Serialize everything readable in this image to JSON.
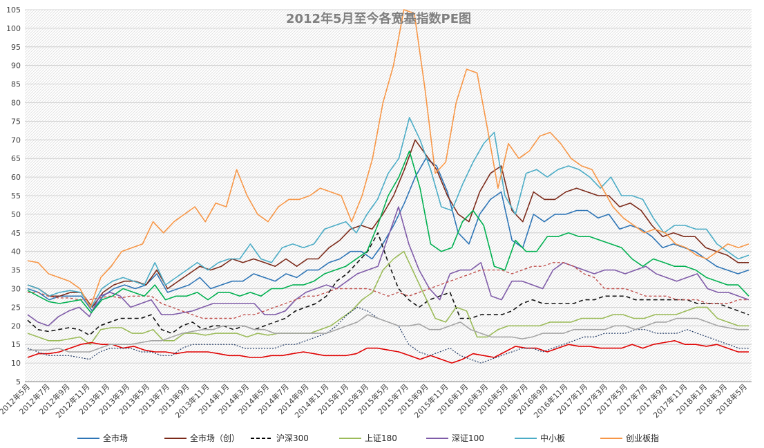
{
  "chart_data": {
    "type": "line",
    "title": "2012年5月至今各宽基指数PE图",
    "grid": true,
    "legend_position": "bottom",
    "ylim": [
      5,
      105
    ],
    "y_ticks": [
      5,
      10,
      15,
      20,
      25,
      30,
      35,
      40,
      45,
      50,
      55,
      60,
      65,
      70,
      75,
      80,
      85,
      90,
      95,
      100,
      105
    ],
    "x_labels": [
      "2012年5月",
      "2012年7月",
      "2012年9月",
      "2012年11月",
      "2013年1月",
      "2013年3月",
      "2013年5月",
      "2013年7月",
      "2013年9月",
      "2013年11月",
      "2014年1月",
      "2014年3月",
      "2014年5月",
      "2014年7月",
      "2014年9月",
      "2014年11月",
      "2015年1月",
      "2015年3月",
      "2015年5月",
      "2015年7月",
      "2015年9月",
      "2015年11月",
      "2016年1月",
      "2016年3月",
      "2016年5月",
      "2016年7月",
      "2016年9月",
      "2016年11月",
      "2017年1月",
      "2017年3月",
      "2017年5月",
      "2017年7月",
      "2017年9月",
      "2017年11月",
      "2018年1月",
      "2018年3月",
      "2018年5月"
    ],
    "legend": [
      {
        "name": "全市场",
        "color": "#2e75b6",
        "dash": "solid"
      },
      {
        "name": "全市场（创）",
        "color": "#7b2a1a",
        "dash": "solid"
      },
      {
        "name": "沪深300",
        "color": "#000000",
        "dash": "dashed"
      },
      {
        "name": "上证180",
        "color": "#9bbb59",
        "dash": "solid"
      },
      {
        "name": "深证100",
        "color": "#7f5ba8",
        "dash": "solid"
      },
      {
        "name": "中小板",
        "color": "#4bacc6",
        "dash": "solid"
      },
      {
        "name": "创业板指",
        "color": "#f79646",
        "dash": "solid"
      }
    ],
    "series": [
      {
        "name": "全市场",
        "color": "#2e75b6",
        "width": 1.6,
        "dash": "",
        "values": [
          30,
          29,
          27,
          28,
          28,
          28,
          24,
          28,
          30,
          31,
          30,
          31,
          34,
          29,
          30,
          31,
          33,
          30,
          31,
          32,
          32,
          34,
          33,
          32,
          34,
          33,
          35,
          35,
          37,
          38,
          40,
          40,
          38,
          42,
          47,
          53,
          60,
          65,
          63,
          56,
          45,
          42,
          50,
          54,
          56,
          43,
          41,
          50,
          48,
          50,
          50,
          51,
          51,
          49,
          50,
          46,
          47,
          46,
          44,
          41,
          42,
          41,
          40,
          38,
          36,
          35,
          34,
          35
        ]
      },
      {
        "name": "全市场（创）",
        "color": "#7b2a1a",
        "width": 1.6,
        "dash": "",
        "values": [
          31,
          30,
          28,
          28,
          29,
          29,
          25,
          29,
          31,
          32,
          32,
          31,
          35,
          30,
          32,
          34,
          36,
          35,
          36,
          38,
          37,
          38,
          37,
          36,
          38,
          36,
          38,
          38,
          41,
          43,
          46,
          47,
          46,
          50,
          55,
          62,
          70,
          66,
          62,
          55,
          50,
          48,
          56,
          61,
          63,
          51,
          48,
          56,
          54,
          54,
          56,
          57,
          56,
          55,
          55,
          52,
          53,
          51,
          47,
          44,
          45,
          44,
          44,
          41,
          40,
          39,
          37,
          37
        ]
      },
      {
        "name": "沪深300",
        "color": "#111111",
        "width": 1.6,
        "dash": "6,4",
        "values": [
          21.5,
          19,
          18.5,
          19,
          19.5,
          19,
          17.5,
          20,
          21,
          22,
          22,
          22,
          23,
          19,
          18,
          20,
          21,
          19,
          20,
          20,
          19,
          20,
          19,
          20,
          21,
          22,
          24,
          25,
          26,
          28,
          32,
          34,
          37,
          40,
          45,
          37,
          30,
          27,
          25,
          27,
          28,
          29,
          22,
          22,
          23,
          23,
          23,
          24,
          26,
          27,
          26,
          26,
          26,
          26,
          27,
          27,
          28,
          28,
          28,
          27,
          27,
          27,
          27,
          27,
          27,
          26,
          26,
          26,
          25,
          24,
          23
        ]
      },
      {
        "name": "上证180",
        "color": "#9bbb59",
        "width": 1.6,
        "dash": "",
        "values": [
          18,
          17,
          16,
          16,
          16.5,
          17,
          15,
          19,
          19.5,
          19.5,
          18,
          18,
          19,
          16,
          16,
          18,
          18,
          17.5,
          18,
          18,
          18,
          17,
          18,
          17.5,
          18,
          18,
          18,
          18,
          19,
          20,
          22,
          24,
          27,
          29,
          35,
          38,
          40,
          34,
          28,
          22,
          21,
          25,
          24,
          17,
          17,
          19,
          20,
          20,
          20,
          20,
          21,
          21,
          21,
          22,
          22,
          22,
          23,
          23,
          22,
          22,
          23,
          23,
          23,
          24,
          25,
          25,
          22,
          21,
          20,
          20
        ]
      },
      {
        "name": "深证100",
        "color": "#7f5ba8",
        "width": 1.6,
        "dash": "",
        "values": [
          23,
          21,
          20,
          22.5,
          24,
          25,
          22.5,
          28,
          29,
          28,
          25,
          26,
          27,
          23,
          23,
          23.5,
          24,
          25,
          26,
          26,
          26,
          26,
          26,
          23,
          23,
          24,
          27,
          29,
          30,
          31,
          30,
          32,
          34,
          35,
          36,
          44,
          52,
          42,
          35,
          30,
          27,
          34,
          35,
          35,
          37,
          28,
          27,
          32,
          32,
          31,
          30,
          35,
          37,
          36,
          35,
          34,
          35,
          35,
          34,
          35,
          36,
          34,
          33,
          32,
          33,
          34,
          30,
          29,
          29,
          28,
          27
        ]
      },
      {
        "name": "中小板",
        "color": "#4bacc6",
        "width": 1.6,
        "dash": "",
        "values": [
          31,
          30,
          28,
          29,
          29.5,
          29,
          25,
          30,
          32,
          33,
          32,
          31,
          37,
          31,
          33,
          35,
          37,
          35,
          37,
          38,
          38,
          42,
          38,
          37,
          41,
          42,
          41,
          42,
          46,
          47,
          48,
          45,
          50,
          54,
          61,
          65,
          76,
          70,
          62,
          52,
          51,
          58,
          64,
          69,
          72,
          55,
          50,
          61,
          62,
          60,
          62,
          63,
          62,
          60,
          57,
          60,
          55,
          55,
          54,
          49,
          45,
          47,
          47,
          46,
          46,
          42,
          40,
          38,
          39
        ]
      },
      {
        "name": "创业板指",
        "color": "#f79646",
        "width": 1.6,
        "dash": "",
        "values": [
          37.5,
          37,
          34,
          33,
          32,
          30,
          25,
          33,
          36,
          40,
          41,
          42,
          48,
          45,
          48,
          50,
          52,
          48,
          53,
          52,
          62,
          55,
          50,
          48,
          52,
          54,
          54,
          55,
          57,
          56,
          55,
          48,
          55,
          65,
          80,
          90,
          105,
          104,
          84,
          61,
          64,
          80,
          89,
          88,
          73,
          57,
          69,
          65,
          67,
          71,
          72,
          69,
          65,
          63,
          62,
          57,
          52,
          49,
          47,
          45,
          46,
          45,
          42,
          41,
          39,
          38,
          40,
          42,
          41,
          42
        ]
      },
      {
        "name": "",
        "color": "#c0504d",
        "width": 1.4,
        "dash": "4,3",
        "values": [
          29,
          29,
          28,
          27.5,
          27.5,
          27,
          27,
          27.5,
          28,
          27.5,
          28,
          28,
          28,
          26,
          25,
          24,
          23,
          22,
          22,
          22,
          22,
          23,
          23,
          24,
          25,
          26,
          27,
          28,
          28,
          29,
          30,
          30,
          30,
          30,
          29,
          28,
          29,
          28,
          29,
          30,
          31,
          32,
          33,
          34,
          35,
          35,
          35,
          34,
          35,
          36,
          36,
          37,
          37,
          36,
          34,
          33,
          30,
          30,
          30,
          29,
          28,
          28,
          28,
          27,
          27,
          27,
          26,
          26,
          26,
          27,
          27
        ]
      },
      {
        "name": "",
        "color": "#e00000",
        "width": 1.6,
        "dash": "",
        "values": [
          11.5,
          12.5,
          12.5,
          13,
          14,
          15,
          15.5,
          15,
          15,
          14,
          14.5,
          13.5,
          13,
          13,
          12.5,
          13,
          13,
          13,
          12.5,
          12,
          12,
          11.5,
          11.5,
          12,
          12,
          12.5,
          13,
          12.5,
          12,
          12,
          12,
          12.5,
          14,
          14,
          13.5,
          13,
          12,
          11,
          12,
          11,
          10,
          11,
          12.5,
          12,
          11.5,
          13,
          14.5,
          14,
          14,
          13,
          14,
          15,
          14.5,
          14.5,
          14,
          14,
          14,
          15,
          14,
          15,
          15.5,
          16,
          15,
          15,
          14.5,
          15,
          14,
          13,
          13
        ]
      },
      {
        "name": "",
        "color": "#1f3864",
        "width": 1.2,
        "dash": "2,2",
        "values": [
          14,
          13,
          12,
          12,
          12,
          11.5,
          11,
          13,
          14,
          14,
          14,
          13,
          13,
          12,
          12,
          14,
          15,
          15,
          15,
          15,
          15,
          14,
          14,
          14,
          14,
          15,
          15,
          16,
          17,
          18,
          20,
          23,
          25,
          24,
          22,
          21,
          20,
          15,
          13,
          12,
          13,
          14,
          12,
          11,
          10,
          11,
          12,
          13,
          14,
          14,
          13,
          14,
          15,
          16,
          17,
          17,
          18,
          18,
          18,
          19,
          19,
          18,
          18,
          18,
          19,
          18,
          17,
          16,
          15,
          14,
          14
        ]
      },
      {
        "name": "",
        "color": "#a5a5a5",
        "width": 1.6,
        "dash": "",
        "values": [
          13.5,
          13.5,
          13.5,
          14,
          13,
          13,
          13,
          14,
          15,
          15,
          15,
          15.5,
          16,
          16,
          17,
          18,
          18.5,
          19,
          19,
          20,
          20,
          20,
          19,
          19,
          18,
          18,
          18,
          18,
          18,
          18,
          19,
          20,
          21,
          23,
          22,
          21,
          20,
          20,
          20.5,
          19,
          19,
          20,
          21,
          19,
          18,
          17,
          17,
          17,
          16.5,
          17,
          18,
          18,
          18,
          19,
          19,
          19,
          19,
          20,
          20,
          19,
          20,
          21,
          21,
          22,
          22,
          22,
          21,
          20,
          19.5,
          19,
          19
        ]
      },
      {
        "name": "",
        "color": "#00b050",
        "width": 1.6,
        "dash": "",
        "values": [
          29.5,
          28,
          26.5,
          26,
          26.5,
          27,
          23.5,
          27,
          28,
          30,
          29,
          28,
          31,
          27,
          28,
          28,
          29,
          27,
          29,
          29,
          28,
          29,
          28,
          30,
          30,
          31,
          31,
          32,
          34,
          35,
          36,
          38,
          40,
          47,
          55,
          60,
          67,
          57,
          42,
          40,
          41,
          48,
          51,
          47,
          36,
          35,
          43,
          40,
          40,
          44,
          44,
          45,
          44,
          44,
          43,
          42,
          41,
          38,
          36,
          38,
          37,
          36,
          36,
          35,
          33,
          32,
          31,
          31,
          28
        ]
      }
    ]
  }
}
